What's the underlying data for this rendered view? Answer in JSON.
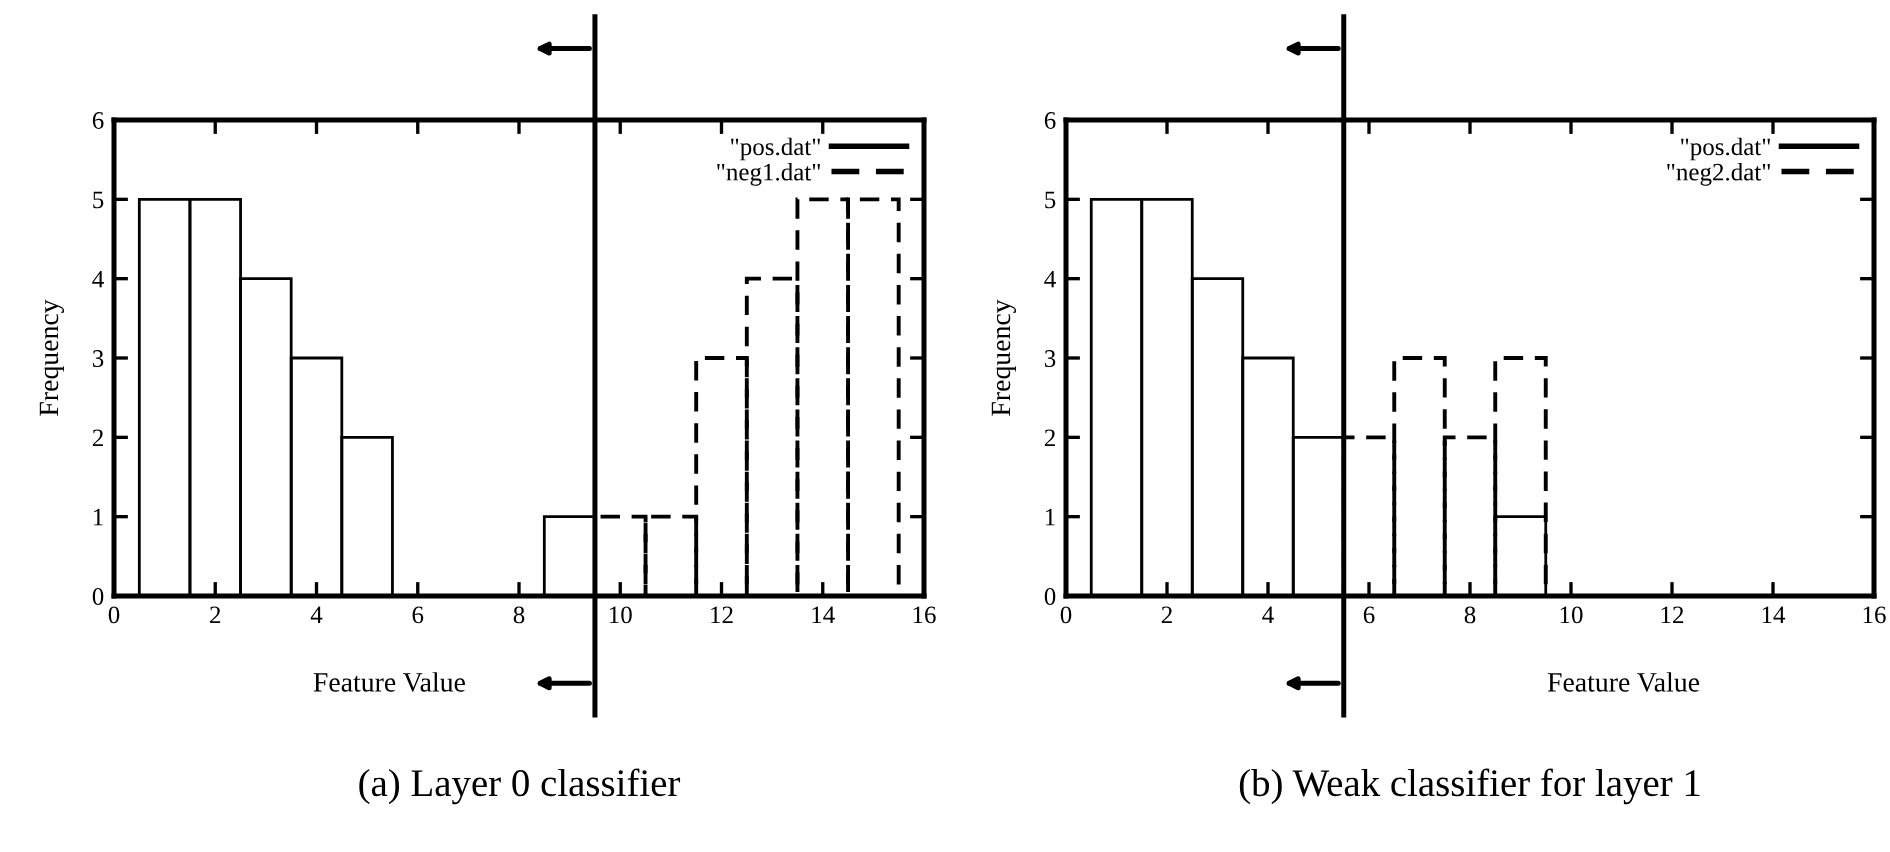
{
  "chart_data": [
    {
      "type": "histogram",
      "title": "(a) Layer 0 classifier",
      "xlabel": "Feature Value",
      "ylabel": "Frequency",
      "xlim": [
        0,
        16
      ],
      "xticks": [
        0,
        2,
        4,
        6,
        8,
        10,
        12,
        14,
        16
      ],
      "ylim": [
        0,
        6
      ],
      "yticks": [
        0,
        1,
        2,
        3,
        4,
        5,
        6
      ],
      "legend": "top right",
      "bins": [
        0.5,
        1.5,
        2.5,
        3.5,
        4.5,
        5.5,
        6.5,
        7.5,
        8.5,
        9.5,
        10.5,
        11.5,
        12.5,
        13.5,
        14.5,
        15.5
      ],
      "series": [
        {
          "name": "\"pos.dat\"",
          "color": "#000000",
          "line_style": "solid",
          "values": [
            5,
            5,
            4,
            3,
            2,
            0,
            0,
            0,
            1,
            null,
            null,
            null,
            null,
            null,
            null
          ]
        },
        {
          "name": "\"neg1.dat\"",
          "color": "#000000",
          "line_style": "dashed",
          "values": [
            null,
            null,
            null,
            null,
            null,
            null,
            null,
            null,
            null,
            1,
            1,
            3,
            4,
            5,
            5
          ]
        }
      ],
      "ref_lines": [
        {
          "axis": "x",
          "value": 9.5,
          "color": "#000000"
        }
      ]
    },
    {
      "type": "histogram",
      "title": "(b) Weak classifier for layer 1",
      "xlabel": "Feature Value",
      "ylabel": "Frequency",
      "xlim": [
        0,
        16
      ],
      "xticks": [
        0,
        2,
        4,
        6,
        8,
        10,
        12,
        14,
        16
      ],
      "ylim": [
        0,
        6
      ],
      "yticks": [
        0,
        1,
        2,
        3,
        4,
        5,
        6
      ],
      "legend": "top right",
      "bins": [
        0.5,
        1.5,
        2.5,
        3.5,
        4.5,
        5.5,
        6.5,
        7.5,
        8.5,
        9.5
      ],
      "series": [
        {
          "name": "\"pos.dat\"",
          "color": "#000000",
          "line_style": "solid",
          "values": [
            5,
            5,
            4,
            3,
            2,
            0,
            0,
            0,
            1
          ]
        },
        {
          "name": "\"neg2.dat\"",
          "color": "#000000",
          "line_style": "dashed",
          "values": [
            null,
            null,
            null,
            null,
            null,
            2,
            3,
            2,
            3
          ]
        }
      ],
      "ref_lines": [
        {
          "axis": "x",
          "value": 5.5,
          "color": "#000000"
        }
      ]
    }
  ]
}
